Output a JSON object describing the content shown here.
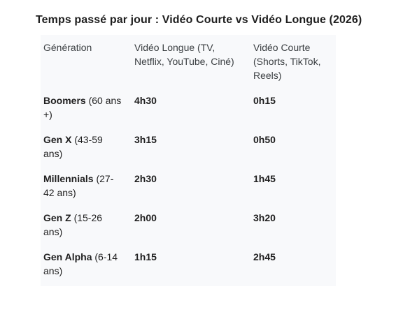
{
  "title": "Temps passé par jour : Vidéo Courte vs Vidéo Longue (2026)",
  "table": {
    "headers": [
      "Génération",
      "Vidéo Longue (TV, Netflix, YouTube, Ciné)",
      "Vidéo Courte (Shorts, TikTok, Reels)"
    ],
    "rows": [
      {
        "name": "Boomers",
        "age": "(60 ans +)",
        "long": "4h30",
        "short": "0h15"
      },
      {
        "name": "Gen X",
        "age": "(43-59 ans)",
        "long": "3h15",
        "short": "0h50"
      },
      {
        "name": "Millennials",
        "age": "(27-42 ans)",
        "long": "2h30",
        "short": "1h45"
      },
      {
        "name": "Gen Z",
        "age": "(15-26 ans)",
        "long": "2h00",
        "short": "3h20"
      },
      {
        "name": "Gen Alpha",
        "age": "(6-14 ans)",
        "long": "1h15",
        "short": "2h45"
      }
    ]
  }
}
